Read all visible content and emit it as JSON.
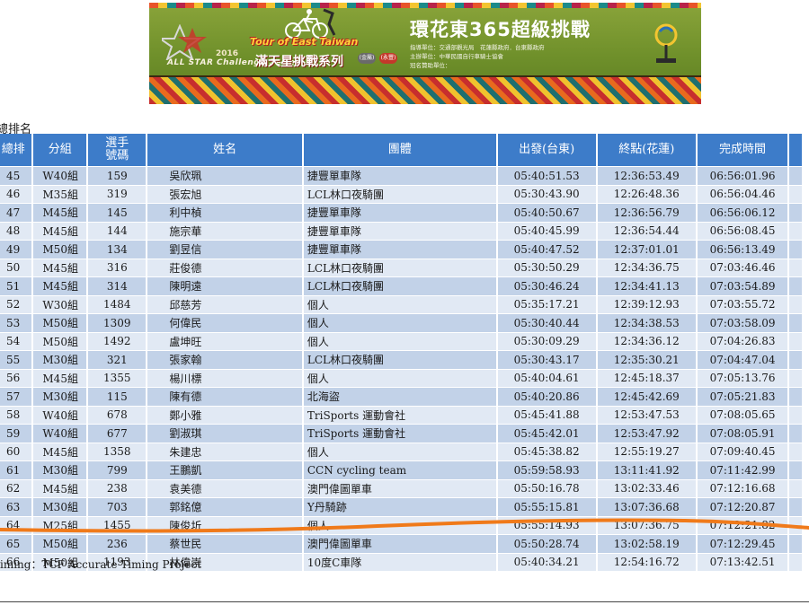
{
  "banner": {
    "tour_title": "Tour of East Taiwan",
    "series_year": "2016",
    "series_en": "ALL STAR Challenge Series",
    "series_cn": "滿天星挑戰系列",
    "chip_a": "(金屬)",
    "chip_b": "(永豐)",
    "main_title": "環花東365超級挑戰",
    "org_lines": [
      "指導單位：交通部觀光局　花蓮縣政府．台東縣政府",
      "主辦單位：中華民國自行車騎士協會",
      "冠名贊助單位："
    ],
    "colors": {
      "green": "#7a9a32",
      "title_white": "#ffffff",
      "accent_yellow": "#ffd33a"
    }
  },
  "section_title": "總排名",
  "table": {
    "headers": [
      "總排",
      "分組",
      "選手號碼",
      "姓名",
      "團體",
      "出發(台東)",
      "終點(花蓮)",
      "完成時間"
    ],
    "rows": [
      [
        "45",
        "W40組",
        "159",
        "吳欣珮",
        "捷豐單車隊",
        "05:40:51.53",
        "12:36:53.49",
        "06:56:01.96"
      ],
      [
        "46",
        "M35組",
        "319",
        "張宏旭",
        "LCL林口夜騎團",
        "05:30:43.90",
        "12:26:48.36",
        "06:56:04.46"
      ],
      [
        "47",
        "M45組",
        "145",
        "利中楨",
        "捷豐單車隊",
        "05:40:50.67",
        "12:36:56.79",
        "06:56:06.12"
      ],
      [
        "48",
        "M45組",
        "144",
        "施宗華",
        "捷豐單車隊",
        "05:40:45.99",
        "12:36:54.44",
        "06:56:08.45"
      ],
      [
        "49",
        "M50組",
        "134",
        "劉昱信",
        "捷豐單車隊",
        "05:40:47.52",
        "12:37:01.01",
        "06:56:13.49"
      ],
      [
        "50",
        "M45組",
        "316",
        "莊俊德",
        "LCL林口夜騎團",
        "05:30:50.29",
        "12:34:36.75",
        "07:03:46.46"
      ],
      [
        "51",
        "M45組",
        "314",
        "陳明遠",
        "LCL林口夜騎團",
        "05:30:46.24",
        "12:34:41.13",
        "07:03:54.89"
      ],
      [
        "52",
        "W30組",
        "1484",
        "邱慈芳",
        "個人",
        "05:35:17.21",
        "12:39:12.93",
        "07:03:55.72"
      ],
      [
        "53",
        "M50組",
        "1309",
        "何偉民",
        "個人",
        "05:30:40.44",
        "12:34:38.53",
        "07:03:58.09"
      ],
      [
        "54",
        "M50組",
        "1492",
        "盧坤旺",
        "個人",
        "05:30:09.29",
        "12:34:36.12",
        "07:04:26.83"
      ],
      [
        "55",
        "M30組",
        "321",
        "張家翰",
        "LCL林口夜騎團",
        "05:30:43.17",
        "12:35:30.21",
        "07:04:47.04"
      ],
      [
        "56",
        "M45組",
        "1355",
        "楊川標",
        "個人",
        "05:40:04.61",
        "12:45:18.37",
        "07:05:13.76"
      ],
      [
        "57",
        "M30組",
        "115",
        "陳有德",
        "北海盜",
        "05:40:20.86",
        "12:45:42.69",
        "07:05:21.83"
      ],
      [
        "58",
        "W40組",
        "678",
        "鄭小雅",
        "TriSports 運動會社",
        "05:45:41.88",
        "12:53:47.53",
        "07:08:05.65"
      ],
      [
        "59",
        "W40組",
        "677",
        "劉淑琪",
        "TriSports 運動會社",
        "05:45:42.01",
        "12:53:47.92",
        "07:08:05.91"
      ],
      [
        "60",
        "M45組",
        "1358",
        "朱建忠",
        "個人",
        "05:45:38.82",
        "12:55:19.27",
        "07:09:40.45"
      ],
      [
        "61",
        "M30組",
        "799",
        "王鵬凱",
        "CCN cycling team",
        "05:59:58.93",
        "13:11:41.92",
        "07:11:42.99"
      ],
      [
        "62",
        "M45組",
        "238",
        "袁美德",
        "澳門偉圖單車",
        "05:50:16.78",
        "13:02:33.46",
        "07:12:16.68"
      ],
      [
        "63",
        "M30組",
        "703",
        "郭銘億",
        "Y丹騎跡",
        "05:55:15.81",
        "13:07:36.68",
        "07:12:20.87"
      ],
      [
        "64",
        "M25組",
        "1455",
        "陳俊圻",
        "個人",
        "05:55:14.93",
        "13:07:36.75",
        "07:12:21.82"
      ],
      [
        "65",
        "M50組",
        "236",
        "蔡世民",
        "澳門偉圖單車",
        "05:50:28.74",
        "13:02:58.19",
        "07:12:29.45"
      ],
      [
        "66",
        "M50組",
        "1193",
        "林偉崇",
        "10度C車隊",
        "05:40:34.21",
        "12:54:16.72",
        "07:13:42.51"
      ]
    ]
  },
  "footer_note": "Timing：TCF Accurate Timing Project",
  "colors": {
    "header_blue": "#3d7cc9",
    "row_dark": "#c2d2e8",
    "row_light": "#e1e9f4",
    "annotation_orange": "#f07a1a"
  }
}
